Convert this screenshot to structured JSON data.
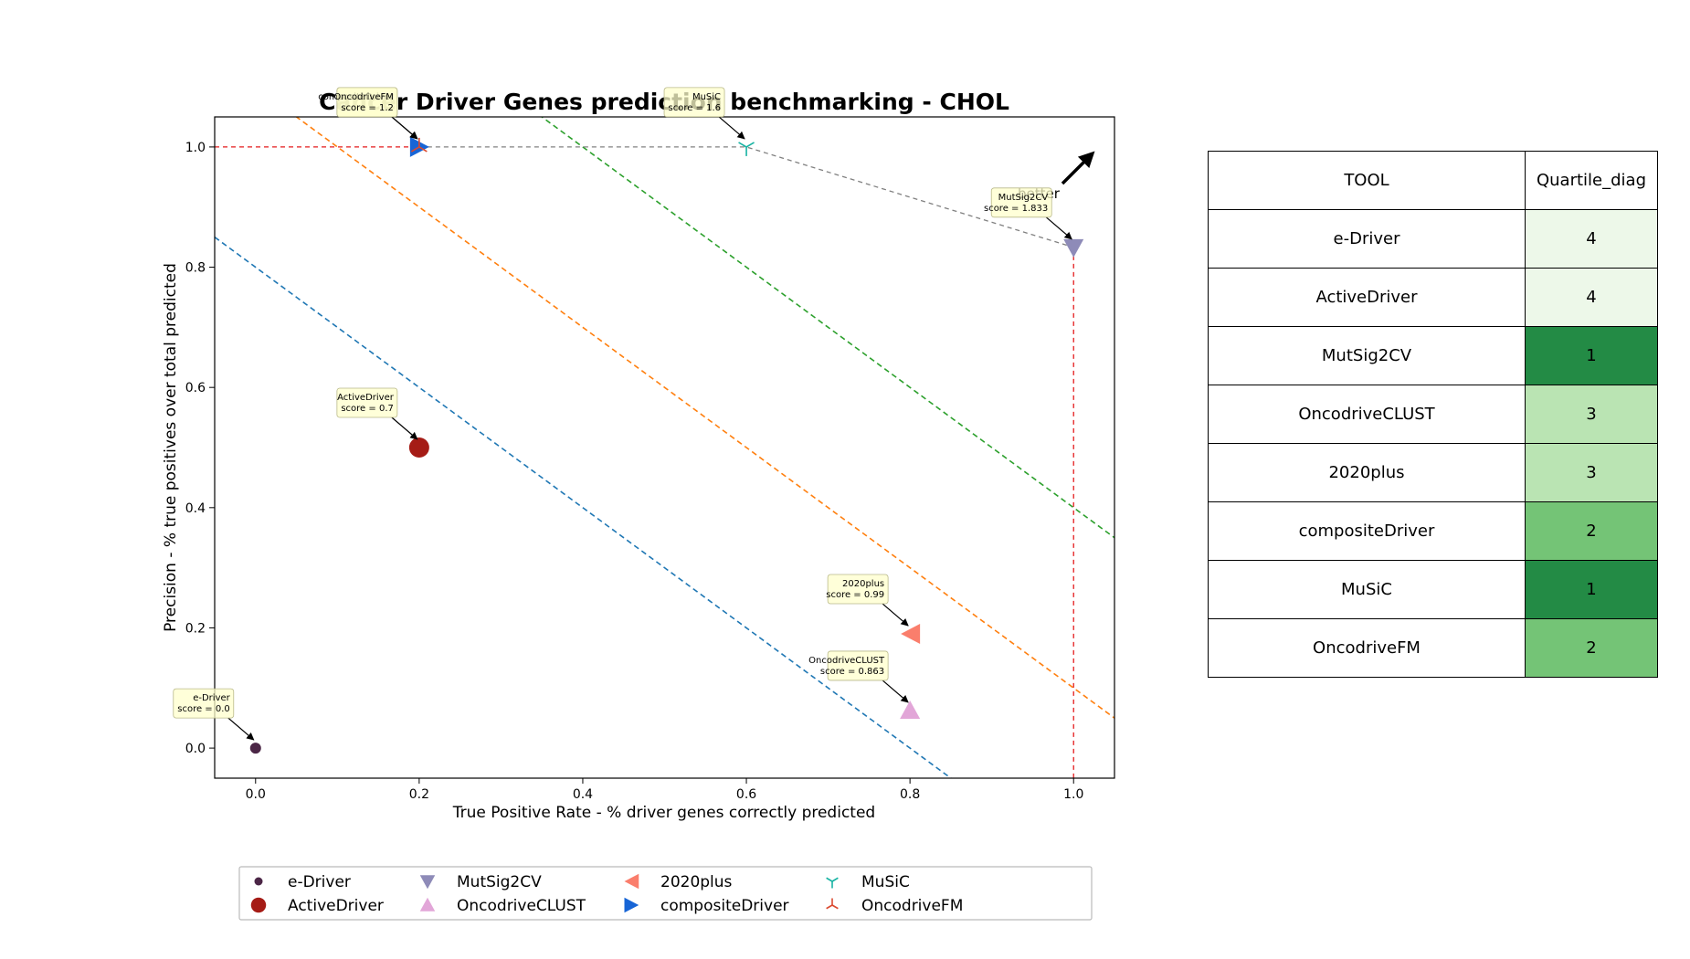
{
  "chart_data": {
    "type": "scatter",
    "title": "Cancer Driver Genes prediction benchmarking - CHOL",
    "xlabel": "True Positive Rate - % driver genes correctly predicted",
    "ylabel": "Precision - % true positives over total predicted",
    "xlim": [
      -0.05,
      1.05
    ],
    "ylim": [
      -0.05,
      1.05
    ],
    "xticks": [
      0.0,
      0.2,
      0.4,
      0.6,
      0.8,
      1.0
    ],
    "yticks": [
      0.0,
      0.2,
      0.4,
      0.6,
      0.8,
      1.0
    ],
    "xtick_labels": [
      "0.0",
      "0.2",
      "0.4",
      "0.6",
      "0.8",
      "1.0"
    ],
    "ytick_labels": [
      "0.0",
      "0.2",
      "0.4",
      "0.6",
      "0.8",
      "1.0"
    ],
    "grid": false,
    "legend_position": "bottom",
    "series": [
      {
        "name": "e-Driver",
        "x": 0.0,
        "y": 0.0,
        "score": "score = 0.0",
        "color": "#4b2646",
        "marker": "small-circle"
      },
      {
        "name": "ActiveDriver",
        "x": 0.2,
        "y": 0.5,
        "score": "score = 0.7",
        "color": "#a51c16",
        "marker": "large-circle"
      },
      {
        "name": "MutSig2CV",
        "x": 1.0,
        "y": 0.833,
        "score": "score = 1.833",
        "color": "#8e8bb8",
        "marker": "triangle-down"
      },
      {
        "name": "OncodriveCLUST",
        "x": 0.8,
        "y": 0.0625,
        "score": "score = 0.863",
        "color": "#e2a6d8",
        "marker": "triangle-up"
      },
      {
        "name": "2020plus",
        "x": 0.8,
        "y": 0.19,
        "score": "score = 0.99",
        "color": "#fa7e6c",
        "marker": "triangle-left"
      },
      {
        "name": "compositeDriver",
        "x": 0.2,
        "y": 1.0,
        "score": "score = 1.2",
        "color": "#1765d6",
        "marker": "triangle-right"
      },
      {
        "name": "MuSiC",
        "x": 0.6,
        "y": 1.0,
        "score": "score = 1.6",
        "color": "#17b3a3",
        "marker": "tri-down"
      },
      {
        "name": "OncodriveFM",
        "x": 0.2,
        "y": 1.0,
        "score": "score = 1.2",
        "color": "#db4a30",
        "marker": "tri-up"
      }
    ],
    "pareto_front": {
      "x": [
        0.2,
        0.6,
        1.0
      ],
      "y": [
        1.0,
        1.0,
        0.833
      ],
      "color": "#808080"
    },
    "diagonal_lines": [
      {
        "intercept": 0.8,
        "color": "#1f77b4"
      },
      {
        "intercept": 1.1,
        "color": "#ff7f0e"
      },
      {
        "intercept": 1.4,
        "color": "#2ca02c"
      }
    ],
    "annotation_text": "better",
    "table": {
      "headers": [
        "TOOL",
        "Quartile_diag"
      ],
      "rows": [
        {
          "tool": "e-Driver",
          "quartile": "4",
          "color": "#edf8e9"
        },
        {
          "tool": "ActiveDriver",
          "quartile": "4",
          "color": "#edf8e9"
        },
        {
          "tool": "MutSig2CV",
          "quartile": "1",
          "color": "#238b45"
        },
        {
          "tool": "OncodriveCLUST",
          "quartile": "3",
          "color": "#bae4b3"
        },
        {
          "tool": "2020plus",
          "quartile": "3",
          "color": "#bae4b3"
        },
        {
          "tool": "compositeDriver",
          "quartile": "2",
          "color": "#74c476"
        },
        {
          "tool": "MuSiC",
          "quartile": "1",
          "color": "#238b45"
        },
        {
          "tool": "OncodriveFM",
          "quartile": "2",
          "color": "#74c476"
        }
      ]
    }
  }
}
